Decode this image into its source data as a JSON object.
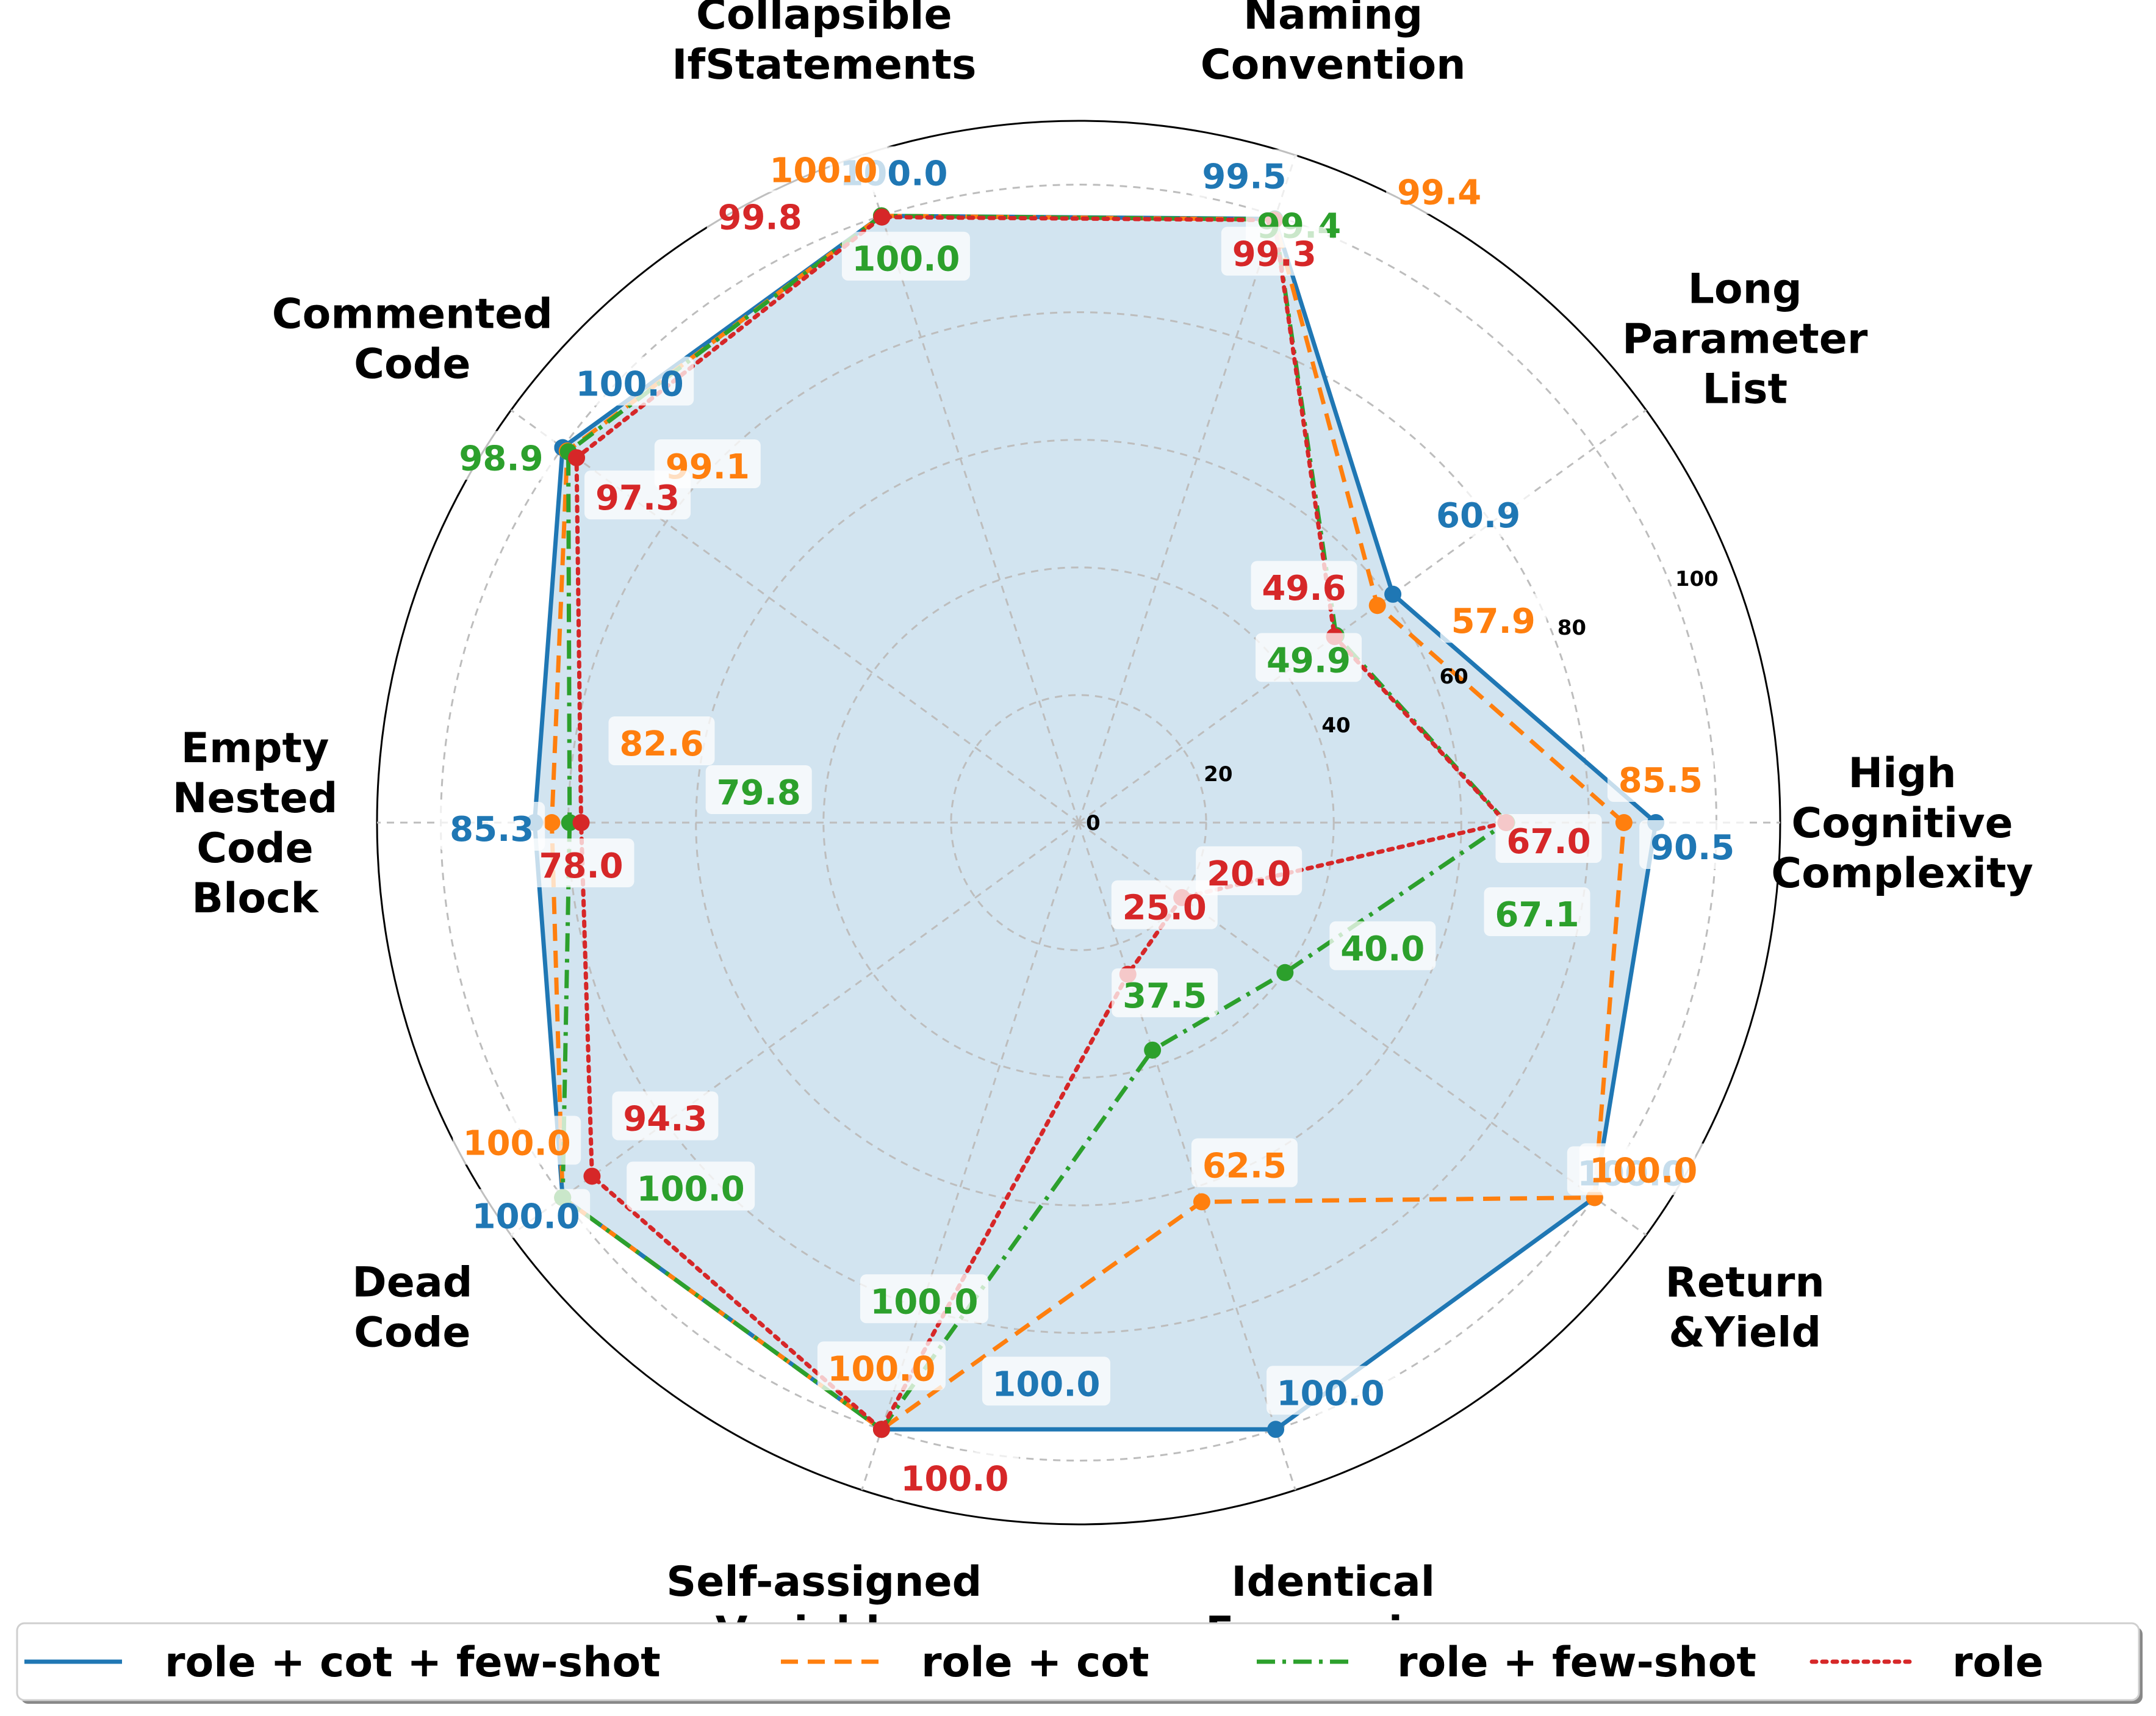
{
  "chart_data": {
    "type": "radar",
    "categories": [
      [
        "High",
        "Cognitive",
        "Complexity"
      ],
      [
        "Long",
        "Parameter",
        "List"
      ],
      [
        "Naming",
        "Convention"
      ],
      [
        "Collapsible",
        "IfStatements"
      ],
      [
        "Commented",
        "Code"
      ],
      [
        "Empty",
        "Nested",
        "Code",
        "Block"
      ],
      [
        "Dead",
        "Code"
      ],
      [
        "Self-assigned",
        "Variables"
      ],
      [
        "Identical",
        "Expression"
      ],
      [
        "Return",
        "&Yield"
      ]
    ],
    "r_ticks": [
      "0",
      "20",
      "40",
      "60",
      "80",
      "100"
    ],
    "rlim": [
      0,
      110
    ],
    "grid": true,
    "legend_position": "bottom",
    "series": [
      {
        "name": "role + cot + few-shot",
        "color": "#1f77b4",
        "dash": "solid",
        "values": [
          90.5,
          60.9,
          99.5,
          100.0,
          100.0,
          85.3,
          100.0,
          100.0,
          100.0,
          100.0
        ],
        "labels": [
          "90.5",
          "60.9",
          "99.5",
          "100.0",
          "100.0",
          "85.3",
          "100.0",
          "100.0",
          "100.0",
          "100.0"
        ]
      },
      {
        "name": "role + cot",
        "color": "#ff7f0e",
        "dash": "dashed",
        "values": [
          85.5,
          57.9,
          99.4,
          100.0,
          99.1,
          82.6,
          100.0,
          100.0,
          62.5,
          100.0
        ],
        "labels": [
          "85.5",
          "57.9",
          "99.4",
          "100.0",
          "99.1",
          "82.6",
          "100.0",
          "100.0",
          "62.5",
          "100.0"
        ]
      },
      {
        "name": "role + few-shot",
        "color": "#2ca02c",
        "dash": "dashdot",
        "values": [
          67.1,
          49.9,
          99.4,
          100.0,
          98.9,
          79.8,
          100.0,
          100.0,
          37.5,
          40.0
        ],
        "labels": [
          "67.1",
          "49.9",
          "99.4",
          "100.0",
          "98.9",
          "79.8",
          "100.0",
          "100.0",
          "37.5",
          "40.0"
        ]
      },
      {
        "name": "role",
        "color": "#d62728",
        "dash": "dotted",
        "values": [
          67.0,
          49.6,
          99.3,
          99.8,
          97.3,
          78.0,
          94.3,
          100.0,
          25.0,
          20.0
        ],
        "labels": [
          "67.0",
          "49.6",
          "99.3",
          "99.8",
          "97.3",
          "78.0",
          "94.3",
          "100.0",
          "25.0",
          "20.0"
        ]
      }
    ]
  }
}
